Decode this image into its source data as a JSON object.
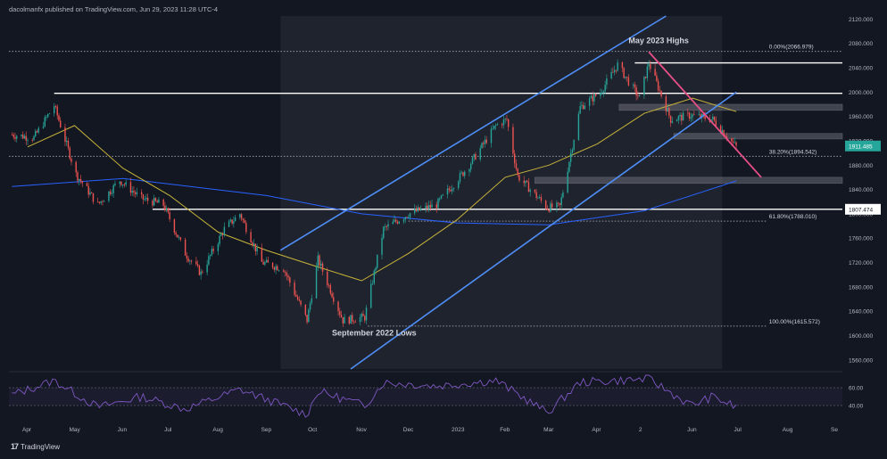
{
  "header": {
    "published_text": "dacolmanfx published on TradingView.com, Jun 29, 2023 11:28 UTC-4"
  },
  "footer": {
    "logo_text": "TradingView",
    "logo_icon": "tradingview-logo-icon"
  },
  "price_axis": {
    "labels": [
      "2120.000",
      "2080.000",
      "2040.000",
      "2000.000",
      "1960.000",
      "1920.000",
      "1880.000",
      "1840.000",
      "1800.000",
      "1760.000",
      "1720.000",
      "1680.000",
      "1640.000",
      "1600.000",
      "1560.000"
    ],
    "current_price_label": "1911.485",
    "level_label": "1807.474"
  },
  "rsi_axis": {
    "labels": [
      "60.00",
      "40.00"
    ]
  },
  "time_axis": {
    "labels": [
      "Apr",
      "May",
      "Jun",
      "Jul",
      "Aug",
      "Sep",
      "Oct",
      "Nov",
      "Dec",
      "2023",
      "Feb",
      "Mar",
      "Apr",
      "2",
      "Jun",
      "Jul",
      "Aug",
      "Se"
    ]
  },
  "annotations": {
    "may_highs": "May 2023 Highs",
    "sep_lows": "September 2022 Lows",
    "fib_0": "0.00%(2066.979)",
    "fib_382": "38.20%(1894.542)",
    "fib_618": "61.80%(1788.010)",
    "fib_100": "100.00%(1615.572)"
  },
  "colors": {
    "background": "#131722",
    "up_candle": "#26a69a",
    "down_candle": "#ef5350",
    "channel": "#4e8ef7",
    "ma_fast": "#c8b43a",
    "ma_slow": "#2962ff",
    "trendline": "#e84f87",
    "rsi": "#7e57c2",
    "current_price_badge": "#26a69a"
  },
  "chart_data": {
    "type": "candlestick",
    "title": "",
    "xlabel": "",
    "ylabel": "",
    "ylim": [
      1545,
      2125
    ],
    "x_range": [
      "2022-03-20",
      "2023-09-05"
    ],
    "close_path": [
      [
        "2022-03-22",
        1930
      ],
      [
        "2022-04-05",
        1925
      ],
      [
        "2022-04-18",
        1978
      ],
      [
        "2022-05-02",
        1865
      ],
      [
        "2022-05-16",
        1815
      ],
      [
        "2022-05-30",
        1855
      ],
      [
        "2022-06-13",
        1825
      ],
      [
        "2022-06-27",
        1815
      ],
      [
        "2022-07-11",
        1735
      ],
      [
        "2022-07-21",
        1702
      ],
      [
        "2022-08-05",
        1775
      ],
      [
        "2022-08-15",
        1800
      ],
      [
        "2022-08-29",
        1720
      ],
      [
        "2022-09-12",
        1710
      ],
      [
        "2022-09-27",
        1625
      ],
      [
        "2022-10-04",
        1725
      ],
      [
        "2022-10-20",
        1625
      ],
      [
        "2022-11-03",
        1630
      ],
      [
        "2022-11-15",
        1775
      ],
      [
        "2022-12-01",
        1800
      ],
      [
        "2022-12-19",
        1815
      ],
      [
        "2023-01-09",
        1880
      ],
      [
        "2023-01-26",
        1945
      ],
      [
        "2023-02-02",
        1955
      ],
      [
        "2023-02-09",
        1862
      ],
      [
        "2023-02-28",
        1810
      ],
      [
        "2023-03-08",
        1812
      ],
      [
        "2023-03-21",
        1975
      ],
      [
        "2023-04-03",
        2000
      ],
      [
        "2023-04-14",
        2045
      ],
      [
        "2023-04-28",
        1990
      ],
      [
        "2023-05-04",
        2048
      ],
      [
        "2023-05-18",
        1955
      ],
      [
        "2023-05-31",
        1962
      ],
      [
        "2023-06-14",
        1955
      ],
      [
        "2023-06-29",
        1910
      ]
    ],
    "ma_fast_path": [
      [
        "2022-04-01",
        1910
      ],
      [
        "2022-05-01",
        1945
      ],
      [
        "2022-06-01",
        1875
      ],
      [
        "2022-07-01",
        1830
      ],
      [
        "2022-08-01",
        1770
      ],
      [
        "2022-09-01",
        1740
      ],
      [
        "2022-10-01",
        1715
      ],
      [
        "2022-11-01",
        1690
      ],
      [
        "2022-12-01",
        1735
      ],
      [
        "2023-01-01",
        1790
      ],
      [
        "2023-02-01",
        1860
      ],
      [
        "2023-03-01",
        1880
      ],
      [
        "2023-04-01",
        1915
      ],
      [
        "2023-05-01",
        1965
      ],
      [
        "2023-06-01",
        1990
      ],
      [
        "2023-06-29",
        1968
      ]
    ],
    "ma_slow_path": [
      [
        "2022-03-22",
        1845
      ],
      [
        "2022-06-01",
        1858
      ],
      [
        "2022-09-01",
        1830
      ],
      [
        "2022-11-01",
        1800
      ],
      [
        "2023-01-01",
        1785
      ],
      [
        "2023-03-01",
        1782
      ],
      [
        "2023-05-01",
        1805
      ],
      [
        "2023-06-29",
        1854
      ]
    ],
    "rsi_path": [
      [
        "2022-03-22",
        52
      ],
      [
        "2022-04-18",
        68
      ],
      [
        "2022-05-16",
        38
      ],
      [
        "2022-06-13",
        50
      ],
      [
        "2022-07-11",
        36
      ],
      [
        "2022-08-15",
        58
      ],
      [
        "2022-09-27",
        30
      ],
      [
        "2022-10-04",
        56
      ],
      [
        "2022-11-03",
        40
      ],
      [
        "2022-11-15",
        66
      ],
      [
        "2022-12-19",
        62
      ],
      [
        "2023-01-26",
        68
      ],
      [
        "2023-02-28",
        32
      ],
      [
        "2023-03-21",
        66
      ],
      [
        "2023-04-14",
        68
      ],
      [
        "2023-05-04",
        70
      ],
      [
        "2023-05-31",
        40
      ],
      [
        "2023-06-14",
        50
      ],
      [
        "2023-06-29",
        38
      ]
    ],
    "rsi_ylim": [
      25,
      75
    ],
    "channel_upper": [
      [
        "2022-09-10",
        1740
      ],
      [
        "2023-05-15",
        2125
      ]
    ],
    "channel_lower": [
      [
        "2022-10-25",
        1545
      ],
      [
        "2023-06-29",
        2000
      ]
    ],
    "trendline": [
      [
        "2023-05-04",
        2066
      ],
      [
        "2023-07-15",
        1860
      ]
    ],
    "horizontal_levels": [
      {
        "from": "2022-03-20",
        "to": "2023-09-05",
        "price": 2066.979,
        "dotted": true
      },
      {
        "from": "2023-04-25",
        "to": "2023-09-05",
        "price": 2048
      },
      {
        "from": "2022-04-18",
        "to": "2023-09-05",
        "price": 1998
      },
      {
        "from": "2022-03-20",
        "to": "2023-09-05",
        "price": 1894.542,
        "dotted": true
      },
      {
        "from": "2022-06-20",
        "to": "2023-09-05",
        "price": 1807.474
      },
      {
        "from": "2022-12-01",
        "to": "2023-07-18",
        "price": 1788.01,
        "dotted": true
      },
      {
        "from": "2022-11-05",
        "to": "2023-07-18",
        "price": 1615.572,
        "dotted": true
      }
    ],
    "zones": [
      {
        "from": "2023-04-15",
        "to": "2023-09-05",
        "low": 1970,
        "high": 1980
      },
      {
        "from": "2023-05-20",
        "to": "2023-09-05",
        "low": 1923,
        "high": 1932
      },
      {
        "from": "2023-02-20",
        "to": "2023-09-05",
        "low": 1850,
        "high": 1860
      }
    ],
    "shaded_range": {
      "from": "2022-09-10",
      "to": "2023-06-20",
      "low": 1545,
      "high": 2125
    }
  }
}
